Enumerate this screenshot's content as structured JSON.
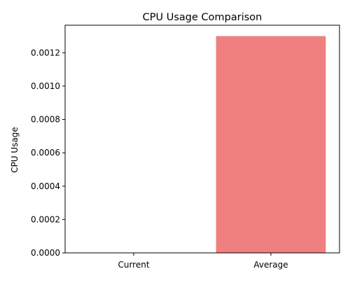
{
  "chart_data": {
    "type": "bar",
    "title": "CPU Usage Comparison",
    "xlabel": "",
    "ylabel": "CPU Usage",
    "categories": [
      "Current",
      "Average"
    ],
    "values": [
      0.0,
      0.0013
    ],
    "bar_colors": [
      "#1f77b4",
      "#f08080"
    ],
    "ylim": [
      0,
      0.001365
    ],
    "yticks": [
      0.0,
      0.0002,
      0.0004,
      0.0006,
      0.0008,
      0.001,
      0.0012
    ],
    "ytick_labels": [
      "0.0000",
      "0.0002",
      "0.0004",
      "0.0006",
      "0.0008",
      "0.0010",
      "0.0012"
    ],
    "grid": false,
    "legend": "none"
  }
}
